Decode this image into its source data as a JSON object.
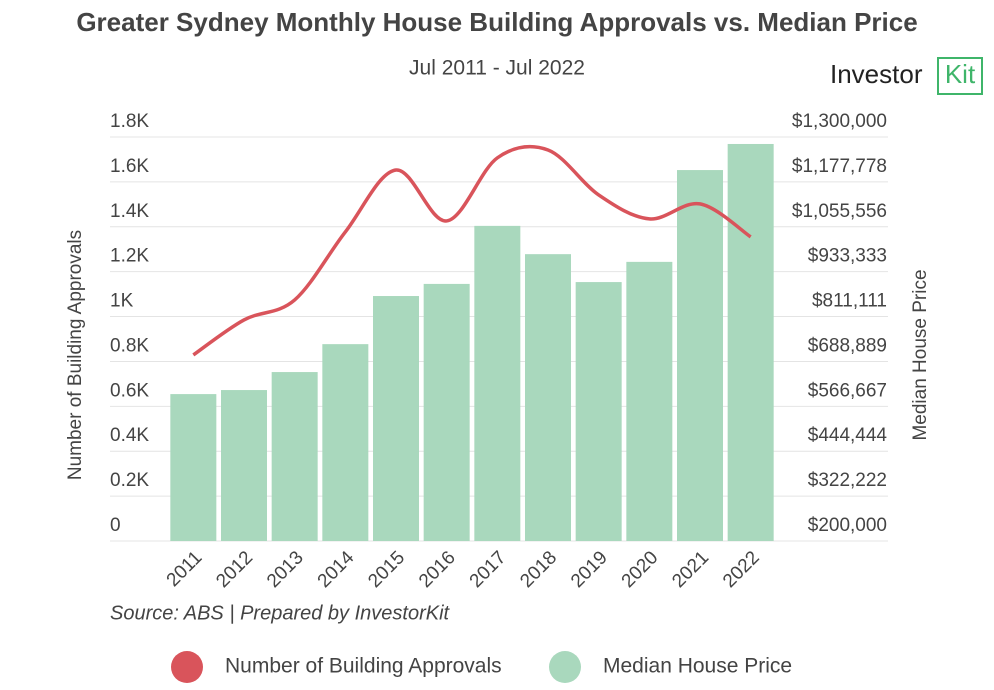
{
  "chart_data": {
    "type": "bar_line",
    "title": "Greater Sydney Monthly House Building Approvals vs. Median Price",
    "subtitle": "Jul 2011 - Jul 2022",
    "brand": [
      "Investor",
      "Kit"
    ],
    "source": "Source: ABS | Prepared by InvestorKit",
    "y_label": "Number of Building Approvals",
    "y2_label": "Median House Price",
    "categories": [
      "2011",
      "2012",
      "2013",
      "2014",
      "2015",
      "2016",
      "2017",
      "2018",
      "2019",
      "2020",
      "2021",
      "2022"
    ],
    "series": [
      {
        "name": "Number of Building Approvals",
        "color": "#d9545b",
        "type": "line",
        "axis": "y",
        "values": [
          829,
          985,
          1074,
          1377,
          1653,
          1426,
          1707,
          1742,
          1542,
          1435,
          1502,
          1355
        ]
      },
      {
        "name": "Median House Price",
        "color": "#a9d8bd",
        "type": "bar",
        "axis": "y2",
        "values": [
          600000,
          611000,
          660000,
          736000,
          867000,
          900000,
          1058000,
          981000,
          905000,
          960000,
          1210000,
          1281000
        ]
      }
    ],
    "ylim": [
      0,
      1800
    ],
    "yticks": [
      0,
      {
        "value": 200,
        "label": "0.2K"
      },
      {
        "value": 400,
        "label": "0.4K"
      },
      {
        "value": 600,
        "label": "0.6K"
      },
      {
        "value": 800,
        "label": "0.8K"
      },
      {
        "value": 1000,
        "label": "1K"
      },
      {
        "value": 1200,
        "label": "1.2K"
      },
      {
        "value": 1400,
        "label": "1.4K"
      },
      {
        "value": 1600,
        "label": "1.6K"
      },
      {
        "value": 1800,
        "label": "1.8K"
      }
    ],
    "y2lim": [
      200000,
      1300000
    ],
    "y2ticks": [
      {
        "value": 200000,
        "label": "$200,000"
      },
      {
        "value": 322222,
        "label": "$322,222"
      },
      {
        "value": 444444,
        "label": "$444,444"
      },
      {
        "value": 566667,
        "label": "$566,667"
      },
      {
        "value": 688889,
        "label": "$688,889"
      },
      {
        "value": 811111,
        "label": "$811,111"
      },
      {
        "value": 933333,
        "label": "$933,333"
      },
      {
        "value": 1055556,
        "label": "$1,055,556"
      },
      {
        "value": 1177778,
        "label": "$1,177,778"
      },
      {
        "value": 1300000,
        "label": "$1,300,000"
      }
    ],
    "grid": true
  }
}
